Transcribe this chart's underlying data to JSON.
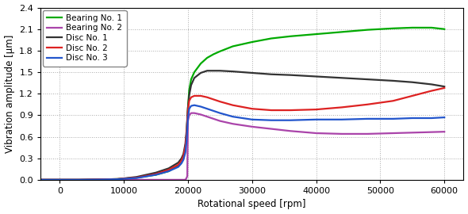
{
  "title": "",
  "xlabel": "Rotational speed [rpm]",
  "ylabel": "Vibration amplitude [μm]",
  "xlim": [
    -3000,
    63000
  ],
  "ylim": [
    0.0,
    2.4
  ],
  "yticks": [
    0.0,
    0.3,
    0.6,
    0.9,
    1.2,
    1.5,
    1.8,
    2.1,
    2.4
  ],
  "xticks": [
    0,
    10000,
    20000,
    30000,
    40000,
    50000,
    60000
  ],
  "series": {
    "Bearing No. 1": {
      "color": "#00aa00",
      "x": [
        -3000,
        0,
        1000,
        3000,
        6000,
        9000,
        12000,
        15000,
        17000,
        18500,
        19000,
        19300,
        19600,
        19800,
        20000,
        20200,
        20500,
        21000,
        22000,
        23000,
        24000,
        25000,
        27000,
        30000,
        33000,
        36000,
        40000,
        44000,
        48000,
        52000,
        55000,
        58000,
        60000
      ],
      "y": [
        0.0,
        0.0,
        0.0,
        0.0,
        0.005,
        0.01,
        0.03,
        0.07,
        0.12,
        0.2,
        0.27,
        0.33,
        0.45,
        0.65,
        1.0,
        1.25,
        1.4,
        1.5,
        1.62,
        1.7,
        1.75,
        1.79,
        1.86,
        1.92,
        1.97,
        2.0,
        2.03,
        2.06,
        2.09,
        2.11,
        2.12,
        2.12,
        2.1
      ]
    },
    "Bearing No. 2": {
      "color": "#aa44aa",
      "x": [
        -3000,
        0,
        1000,
        3000,
        6000,
        9000,
        12000,
        15000,
        17000,
        18000,
        19000,
        19500,
        19700,
        19900,
        20000,
        20200,
        20500,
        21000,
        22000,
        23000,
        24000,
        25000,
        27000,
        30000,
        33000,
        36000,
        40000,
        44000,
        48000,
        52000,
        56000,
        60000
      ],
      "y": [
        0.0,
        0.0,
        0.0,
        0.0,
        0.0,
        0.0,
        0.0,
        0.0,
        0.0,
        0.0,
        0.0,
        0.0,
        0.01,
        0.05,
        0.82,
        0.9,
        0.93,
        0.93,
        0.91,
        0.88,
        0.85,
        0.82,
        0.78,
        0.74,
        0.71,
        0.68,
        0.65,
        0.64,
        0.64,
        0.65,
        0.66,
        0.67
      ]
    },
    "Disc No. 1": {
      "color": "#333333",
      "x": [
        -3000,
        0,
        1000,
        3000,
        6000,
        9000,
        12000,
        15000,
        17000,
        18500,
        19000,
        19300,
        19600,
        19800,
        20000,
        20200,
        20500,
        21000,
        22000,
        23000,
        24000,
        25000,
        27000,
        30000,
        33000,
        36000,
        40000,
        44000,
        48000,
        52000,
        55000,
        58000,
        60000
      ],
      "y": [
        0.0,
        0.0,
        0.0,
        0.0,
        0.005,
        0.01,
        0.04,
        0.1,
        0.16,
        0.24,
        0.3,
        0.36,
        0.5,
        0.7,
        1.0,
        1.18,
        1.32,
        1.42,
        1.49,
        1.52,
        1.52,
        1.52,
        1.51,
        1.49,
        1.47,
        1.46,
        1.44,
        1.42,
        1.4,
        1.38,
        1.36,
        1.33,
        1.3
      ]
    },
    "Disc No. 2": {
      "color": "#dd2222",
      "x": [
        -3000,
        0,
        1000,
        3000,
        6000,
        9000,
        12000,
        15000,
        17000,
        18500,
        19000,
        19300,
        19600,
        19800,
        20000,
        20200,
        20500,
        21000,
        22000,
        23000,
        24000,
        25000,
        27000,
        30000,
        33000,
        36000,
        40000,
        44000,
        48000,
        52000,
        55000,
        58000,
        60000
      ],
      "y": [
        0.0,
        0.0,
        0.0,
        0.0,
        0.005,
        0.01,
        0.03,
        0.08,
        0.14,
        0.21,
        0.27,
        0.33,
        0.46,
        0.65,
        0.96,
        1.1,
        1.15,
        1.17,
        1.17,
        1.15,
        1.12,
        1.09,
        1.04,
        0.99,
        0.97,
        0.97,
        0.98,
        1.01,
        1.05,
        1.1,
        1.17,
        1.24,
        1.28
      ]
    },
    "Disc No. 3": {
      "color": "#2255cc",
      "x": [
        -3000,
        0,
        1000,
        3000,
        6000,
        9000,
        12000,
        15000,
        17000,
        18500,
        19000,
        19300,
        19600,
        19800,
        20000,
        20200,
        20500,
        21000,
        22000,
        23000,
        24000,
        25000,
        27000,
        30000,
        33000,
        36000,
        40000,
        44000,
        48000,
        52000,
        55000,
        58000,
        60000
      ],
      "y": [
        0.0,
        0.0,
        0.0,
        0.0,
        0.003,
        0.008,
        0.025,
        0.07,
        0.12,
        0.18,
        0.23,
        0.28,
        0.38,
        0.55,
        0.86,
        0.99,
        1.03,
        1.04,
        1.02,
        0.99,
        0.96,
        0.93,
        0.88,
        0.84,
        0.83,
        0.83,
        0.84,
        0.84,
        0.85,
        0.85,
        0.86,
        0.86,
        0.87
      ]
    }
  },
  "legend_loc": "upper left",
  "grid_style": ":",
  "grid_color": "#aaaaaa",
  "bg_color": "#ffffff",
  "linewidth": 1.6
}
